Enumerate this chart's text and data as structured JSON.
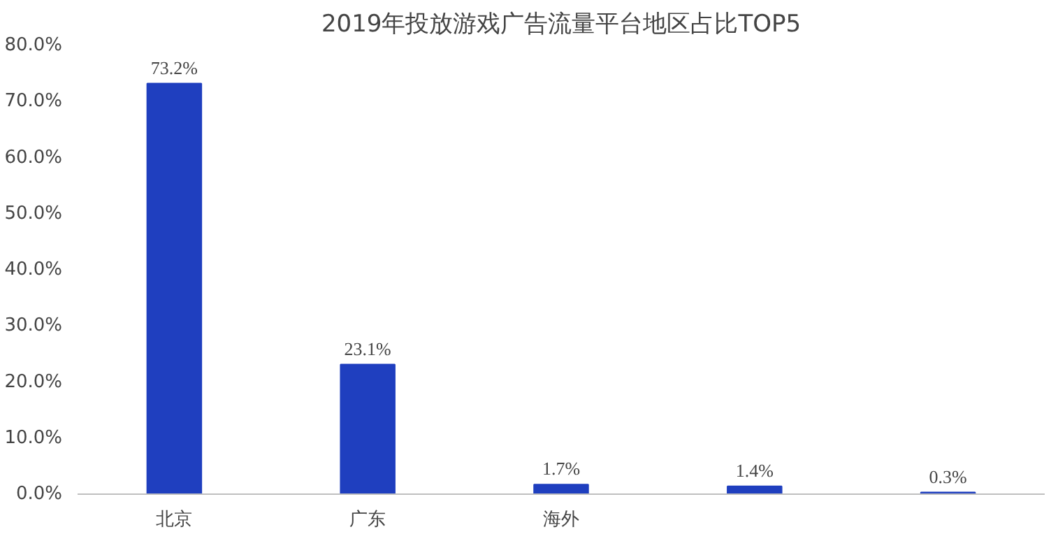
{
  "chart_data": {
    "type": "bar",
    "title": "2019年投放游戏广告流量平台地区占比TOP5",
    "categories": [
      "北京",
      "广东",
      "海外",
      null,
      null
    ],
    "values": [
      73.2,
      23.1,
      1.7,
      1.4,
      0.3
    ],
    "value_labels": [
      "73.2%",
      "23.1%",
      "1.7%",
      "1.4%",
      "0.3%"
    ],
    "color": "#1f3fbf",
    "ylim": [
      0,
      80
    ],
    "yticks": [
      {
        "value": 0,
        "label": "0.0%"
      },
      {
        "value": 10,
        "label": "10.0%"
      },
      {
        "value": 20,
        "label": "20.0%"
      },
      {
        "value": 30,
        "label": "30.0%"
      },
      {
        "value": 40,
        "label": "40.0%"
      },
      {
        "value": 50,
        "label": "50.0%"
      },
      {
        "value": 60,
        "label": "60.0%"
      },
      {
        "value": 70,
        "label": "70.0%"
      },
      {
        "value": 80,
        "label": "80.0%"
      }
    ],
    "grid": false
  }
}
